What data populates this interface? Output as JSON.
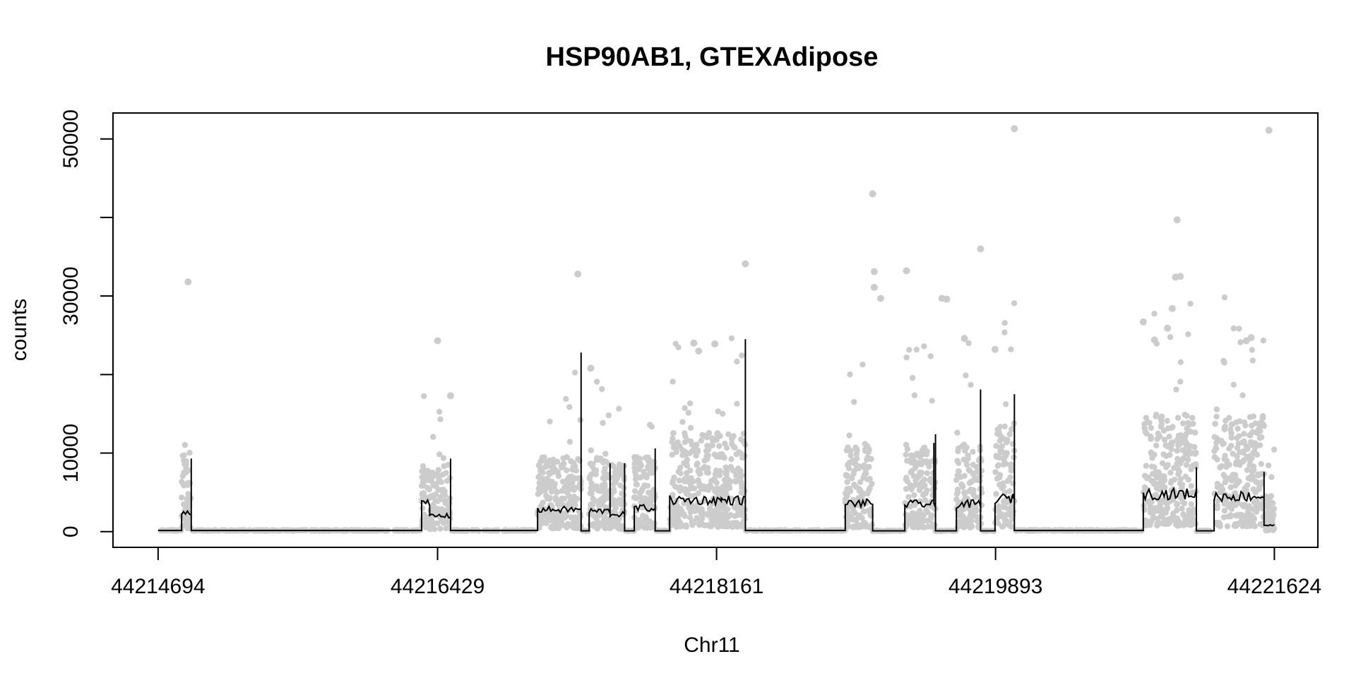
{
  "chart_data": {
    "type": "scatter",
    "title": "HSP90AB1, GTEXAdipose",
    "xlabel": "Chr11",
    "ylabel": "counts",
    "xlim": [
      44214414,
      44221894
    ],
    "ylim": [
      -2000,
      53300
    ],
    "x_ticks": [
      44214694,
      44216429,
      44218161,
      44219893,
      44221624
    ],
    "x_tick_labels": [
      "44214694",
      "44216429",
      "44218161",
      "44219893",
      "44221624"
    ],
    "y_ticks": [
      0,
      10000,
      20000,
      30000,
      40000,
      50000
    ],
    "y_tick_labels": [
      "0",
      "10000",
      "",
      "30000",
      "",
      "50000"
    ],
    "grid": false,
    "legend": "none",
    "colors": {
      "points": "#cccccc",
      "line": "#000000",
      "frame": "#000000"
    },
    "segments": [
      {
        "start": 44214694,
        "end": 44214840,
        "level": 150
      },
      {
        "start": 44214840,
        "end": 44214900,
        "level": 2500,
        "spike": 9300,
        "spread": 4500
      },
      {
        "start": 44214900,
        "end": 44216330,
        "level": 150
      },
      {
        "start": 44216330,
        "end": 44216380,
        "level": 3500,
        "spread": 3500
      },
      {
        "start": 44216380,
        "end": 44216510,
        "level": 2000,
        "spike": 9300,
        "spread": 3500
      },
      {
        "start": 44216510,
        "end": 44217050,
        "level": 150
      },
      {
        "start": 44217050,
        "end": 44217320,
        "level": 2800,
        "spike": 22800,
        "spread": 4000
      },
      {
        "start": 44217320,
        "end": 44217370,
        "level": 100
      },
      {
        "start": 44217370,
        "end": 44217500,
        "level": 2600,
        "spike": 8700,
        "spread": 4000
      },
      {
        "start": 44217500,
        "end": 44217590,
        "level": 2200,
        "spike": 8700,
        "spread": 3800
      },
      {
        "start": 44217590,
        "end": 44217650,
        "level": 100
      },
      {
        "start": 44217650,
        "end": 44217780,
        "level": 3000,
        "spike": 10600,
        "spread": 4000
      },
      {
        "start": 44217780,
        "end": 44217870,
        "level": 100
      },
      {
        "start": 44217870,
        "end": 44218190,
        "level": 4000,
        "spread": 5000
      },
      {
        "start": 44218190,
        "end": 44218340,
        "level": 4000,
        "spike": 24500,
        "spread": 5000
      },
      {
        "start": 44218340,
        "end": 44218960,
        "level": 150
      },
      {
        "start": 44218960,
        "end": 44219130,
        "level": 3600,
        "spread": 4500
      },
      {
        "start": 44219130,
        "end": 44219330,
        "level": 100
      },
      {
        "start": 44219330,
        "end": 44219510,
        "level": 3500,
        "spike": 11300,
        "spread": 4500
      },
      {
        "start": 44219510,
        "end": 44219520,
        "level": 3500,
        "spike": 12400,
        "spread": 4500
      },
      {
        "start": 44219520,
        "end": 44219650,
        "level": 100
      },
      {
        "start": 44219650,
        "end": 44219800,
        "level": 3500,
        "spike": 18100,
        "spread": 4500
      },
      {
        "start": 44219800,
        "end": 44219800,
        "level": 2500,
        "spike": 11000,
        "spread": 4500
      },
      {
        "start": 44219800,
        "end": 44219890,
        "level": 100
      },
      {
        "start": 44219890,
        "end": 44220000,
        "level": 4200,
        "spread": 5500
      },
      {
        "start": 44220000,
        "end": 44220010,
        "level": 4800,
        "spike": 17500,
        "spread": 5500
      },
      {
        "start": 44220010,
        "end": 44220810,
        "level": 150
      },
      {
        "start": 44220810,
        "end": 44221140,
        "level": 4800,
        "spike": 8200,
        "spread": 6000
      },
      {
        "start": 44221140,
        "end": 44221250,
        "level": 100
      },
      {
        "start": 44221250,
        "end": 44221560,
        "level": 4500,
        "spike": 7600,
        "spread": 6000
      },
      {
        "start": 44221560,
        "end": 44221624,
        "level": 800,
        "spread": 2500
      }
    ],
    "outliers": [
      [
        44214880,
        31800
      ],
      [
        44216429,
        24300
      ],
      [
        44216510,
        17300
      ],
      [
        44217300,
        32800
      ],
      [
        44217380,
        20800
      ],
      [
        44218340,
        34100
      ],
      [
        44218150,
        23900
      ],
      [
        44218050,
        23000
      ],
      [
        44218020,
        24000
      ],
      [
        44219130,
        43000
      ],
      [
        44219140,
        33100
      ],
      [
        44219140,
        31100
      ],
      [
        44219180,
        29700
      ],
      [
        44219340,
        33200
      ],
      [
        44219560,
        29700
      ],
      [
        44219590,
        29600
      ],
      [
        44219800,
        36000
      ],
      [
        44219700,
        24600
      ],
      [
        44219890,
        23200
      ],
      [
        44220010,
        51300
      ],
      [
        44220810,
        26700
      ],
      [
        44221020,
        39700
      ],
      [
        44221010,
        32400
      ],
      [
        44221040,
        32500
      ],
      [
        44221590,
        51100
      ],
      [
        44221480,
        24700
      ],
      [
        44221450,
        24300
      ],
      [
        44220880,
        24400
      ],
      [
        44220960,
        25900
      ],
      [
        44220990,
        28400
      ]
    ]
  }
}
